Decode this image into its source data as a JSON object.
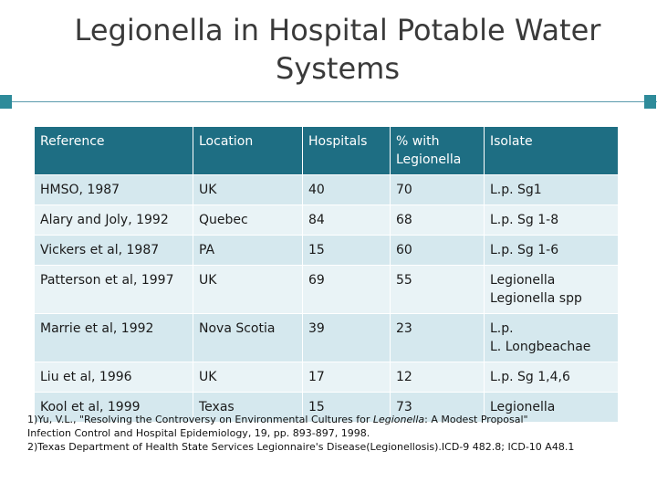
{
  "slide": {
    "title_line1": "Legionella in Hospital Potable Water",
    "title_line2": "Systems",
    "colors": {
      "header_bg": "#1e6e83",
      "row_bg": "#d5e8ee",
      "row_alt_bg": "#e9f3f6",
      "accent": "#2e8b9a"
    }
  },
  "table": {
    "headers": {
      "reference": "Reference",
      "location": "Location",
      "hospitals": "Hospitals",
      "pct_line1": "% with",
      "pct_line2": "Legionella",
      "isolate": "Isolate"
    },
    "rows": [
      {
        "reference": "HMSO, 1987",
        "location": "UK",
        "hospitals": "40",
        "pct": "70",
        "isolate_line1": "L.p. Sg1",
        "isolate_line2": ""
      },
      {
        "reference": "Alary and Joly, 1992",
        "location": "Quebec",
        "hospitals": "84",
        "pct": "68",
        "isolate_line1": "L.p. Sg 1-8",
        "isolate_line2": ""
      },
      {
        "reference": "Vickers et al, 1987",
        "location": "PA",
        "hospitals": "15",
        "pct": "60",
        "isolate_line1": "L.p. Sg 1-6",
        "isolate_line2": ""
      },
      {
        "reference": "Patterson et al, 1997",
        "location": "UK",
        "hospitals": "69",
        "pct": "55",
        "isolate_line1": "Legionella",
        "isolate_line2": "Legionella spp"
      },
      {
        "reference": "Marrie et al, 1992",
        "location": "Nova Scotia",
        "hospitals": "39",
        "pct": "23",
        "isolate_line1": "L.p.",
        "isolate_line2": "L. Longbeachae"
      },
      {
        "reference": "Liu et al, 1996",
        "location": "UK",
        "hospitals": "17",
        "pct": "12",
        "isolate_line1": "L.p. Sg 1,4,6",
        "isolate_line2": ""
      },
      {
        "reference": "Kool et al, 1999",
        "location": "Texas",
        "hospitals": "15",
        "pct": "73",
        "isolate_line1": "Legionella",
        "isolate_line2": ""
      }
    ]
  },
  "footnotes": {
    "fn1_a": "1)Yu, V.L., \"Resolving the Controversy on Environmental Cultures for ",
    "fn1_em": "Legionella",
    "fn1_b": ": A Modest Proposal\"",
    "fn1_line2": "Infection Control and Hospital Epidemiology, 19, pp. 893-897, 1998.",
    "fn2": "2)Texas Department of Health State Services Legionnaire's Disease(Legionellosis).ICD-9 482.8; ICD-10 A48.1"
  }
}
